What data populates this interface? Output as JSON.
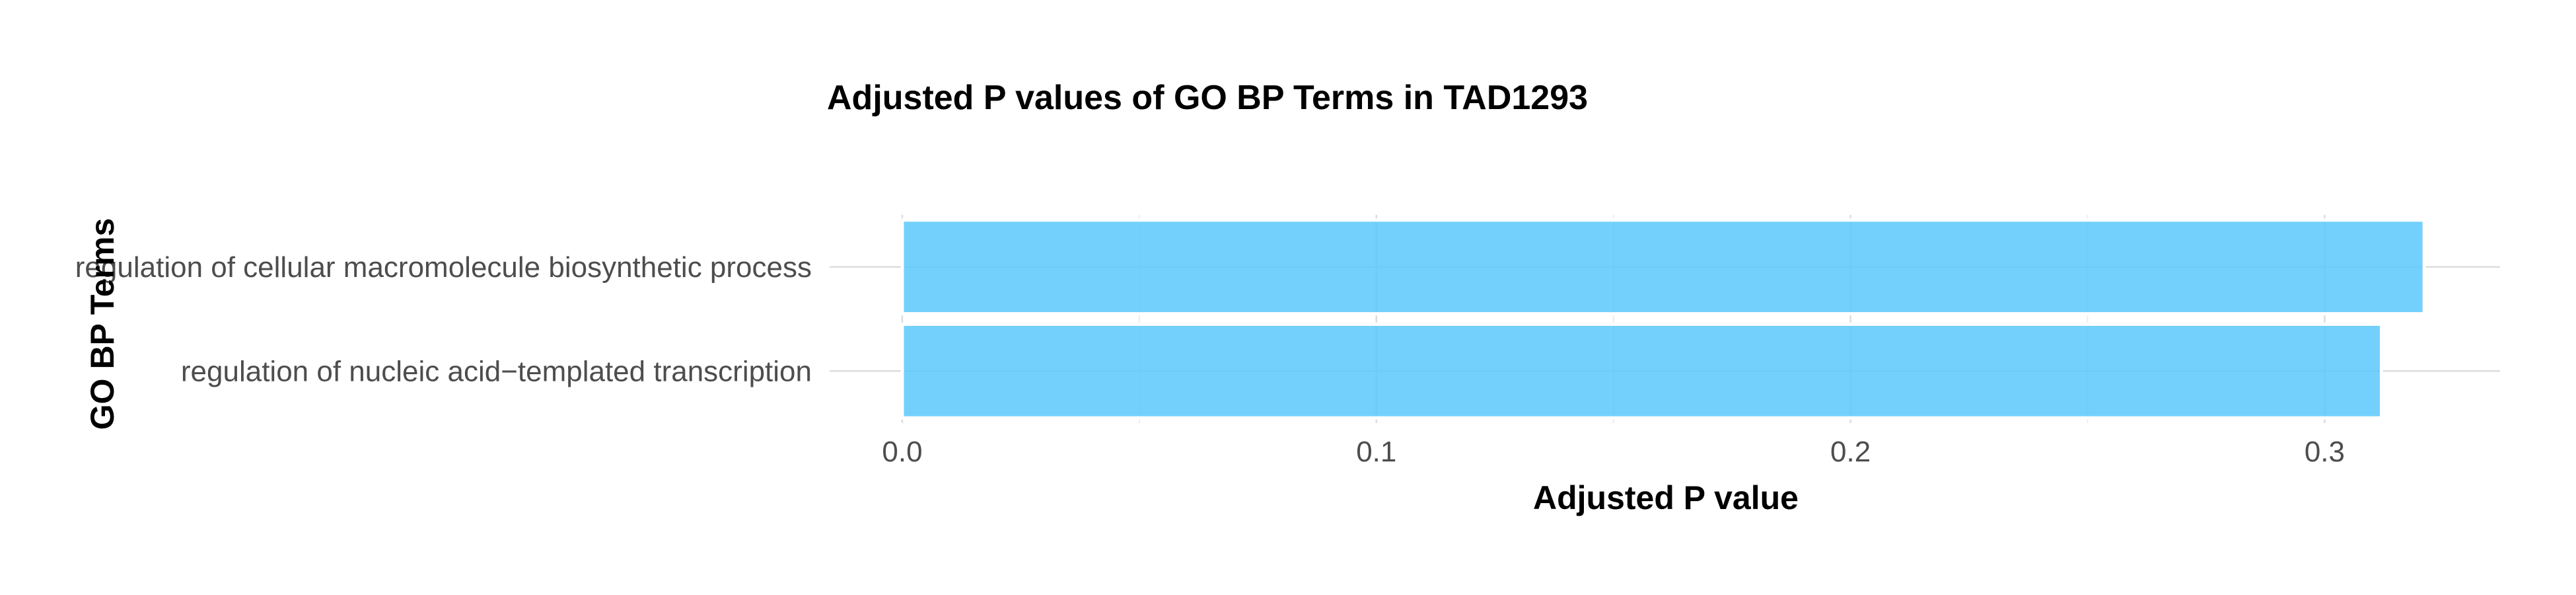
{
  "chart_data": {
    "type": "bar",
    "orientation": "horizontal",
    "title": "Adjusted P values of GO BP Terms in TAD1293",
    "xlabel": "Adjusted P value",
    "ylabel": "GO BP Terms",
    "categories": [
      "regulation of cellular macromolecule biosynthetic process",
      "regulation of nucleic acid−templated transcription"
    ],
    "values": [
      0.321,
      0.312
    ],
    "xlim": [
      0,
      0.337
    ],
    "x_ticks": [
      0,
      0.1,
      0.2,
      0.3
    ],
    "x_tick_labels": [
      "0.0",
      "0.1",
      "0.2",
      "0.3"
    ],
    "bar_color": "#5bc8fb",
    "grid": true,
    "legend": "none"
  }
}
